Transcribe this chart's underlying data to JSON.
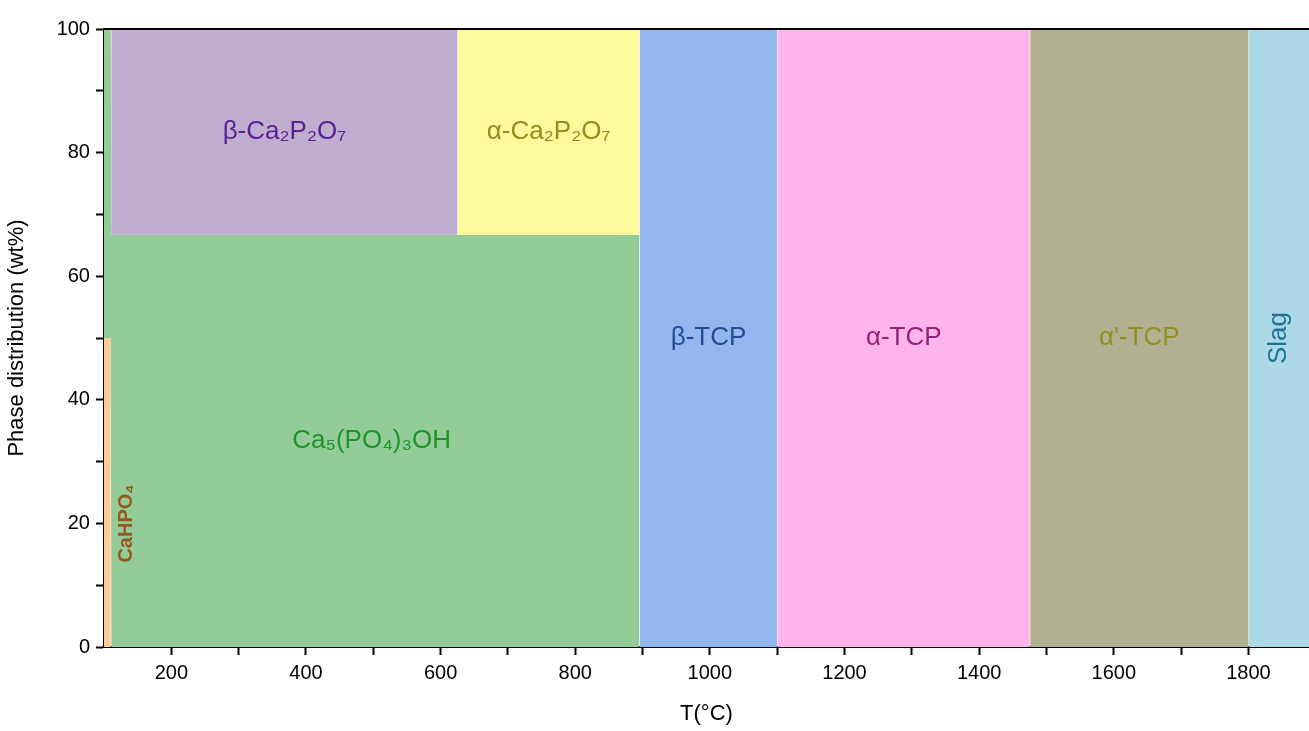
{
  "chart_data": {
    "type": "area",
    "stacked": true,
    "xlabel": "T(°C)",
    "ylabel": "Phase distribution (wt%)",
    "x": [
      100,
      110,
      111,
      625,
      626,
      895,
      896,
      1100,
      1101,
      1475,
      1476,
      1800,
      1801,
      1890
    ],
    "series": [
      {
        "name": "CaHPO₄",
        "color": "#ffcc99",
        "values": [
          50,
          50,
          null,
          null,
          null,
          null,
          null,
          null,
          null,
          null,
          null,
          null,
          null,
          null
        ]
      },
      {
        "name": "Ca₅(PO₄)₃OH",
        "color": "#94cc99",
        "values": [
          50,
          50,
          66.7,
          66.7,
          66.7,
          66.7,
          null,
          null,
          null,
          null,
          null,
          null,
          null,
          null
        ]
      },
      {
        "name": "β-Ca₂P₂O₇",
        "color": "#c0aed1",
        "values": [
          null,
          null,
          33.3,
          33.3,
          null,
          null,
          null,
          null,
          null,
          null,
          null,
          null,
          null,
          null
        ]
      },
      {
        "name": "α-Ca₂P₂O₇",
        "color": "#fff99e",
        "values": [
          null,
          null,
          null,
          null,
          33.3,
          33.3,
          null,
          null,
          null,
          null,
          null,
          null,
          null,
          null
        ]
      },
      {
        "name": "β-TCP",
        "color": "#94b6ee",
        "values": [
          null,
          null,
          null,
          null,
          null,
          null,
          100,
          100,
          null,
          null,
          null,
          null,
          null,
          null
        ]
      },
      {
        "name": "α-TCP",
        "color": "#ffb3ec",
        "values": [
          null,
          null,
          null,
          null,
          null,
          null,
          null,
          null,
          100,
          100,
          null,
          null,
          null,
          null
        ]
      },
      {
        "name": "α'-TCP",
        "color": "#b1b090",
        "values": [
          null,
          null,
          null,
          null,
          null,
          null,
          null,
          null,
          null,
          null,
          100,
          100,
          null,
          null
        ]
      },
      {
        "name": "Slag",
        "color": "#add8e8",
        "values": [
          null,
          null,
          null,
          null,
          null,
          null,
          null,
          null,
          null,
          null,
          null,
          null,
          100,
          100
        ]
      }
    ],
    "xlim": [
      100,
      1890
    ],
    "xticks": [
      200,
      {
        "value": 300,
        "label": null
      },
      400,
      {
        "value": 500,
        "label": null
      },
      600,
      {
        "value": 700,
        "label": null
      },
      800,
      {
        "value": 900,
        "label": null
      },
      1000,
      {
        "value": 1100,
        "label": null
      },
      1200,
      {
        "value": 1300,
        "label": null
      },
      1400,
      {
        "value": 1500,
        "label": null
      },
      1600,
      {
        "value": 1700,
        "label": null
      },
      1800
    ],
    "ylim": [
      0,
      100
    ],
    "yticks": [
      0,
      {
        "value": 10,
        "label": null
      },
      20,
      {
        "value": 30,
        "label": null
      },
      40,
      {
        "value": 50,
        "label": null
      },
      60,
      {
        "value": 70,
        "label": null
      },
      80,
      {
        "value": 90,
        "label": null
      },
      100
    ],
    "grid": false,
    "legend": false
  }
}
